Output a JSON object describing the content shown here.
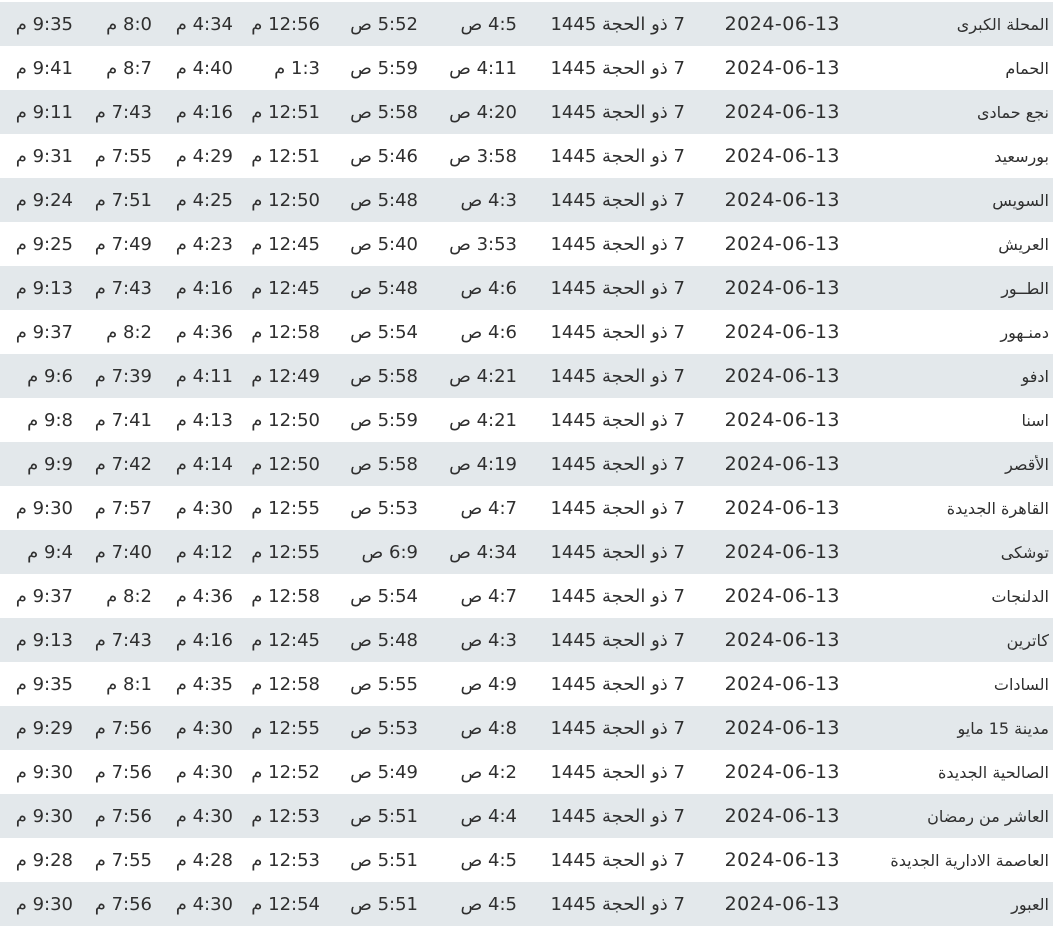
{
  "colors": {
    "row_alt": "#e3e8eb",
    "row": "#ffffff",
    "text": "#2f2f2f"
  },
  "rows": [
    [
      "المحلة الكبرى",
      "2024-06-13",
      "7 ذو الحجة 1445",
      "4:5 ص",
      "5:52 ص",
      "12:56 م",
      "4:34 م",
      "8:0 م",
      "9:35 م"
    ],
    [
      "الحمام",
      "2024-06-13",
      "7 ذو الحجة 1445",
      "4:11 ص",
      "5:59 ص",
      "1:3 م",
      "4:40 م",
      "8:7 م",
      "9:41 م"
    ],
    [
      "نجع حمادى",
      "2024-06-13",
      "7 ذو الحجة 1445",
      "4:20 ص",
      "5:58 ص",
      "12:51 م",
      "4:16 م",
      "7:43 م",
      "9:11 م"
    ],
    [
      "بورسعيد",
      "2024-06-13",
      "7 ذو الحجة 1445",
      "3:58 ص",
      "5:46 ص",
      "12:51 م",
      "4:29 م",
      "7:55 م",
      "9:31 م"
    ],
    [
      "السويس",
      "2024-06-13",
      "7 ذو الحجة 1445",
      "4:3 ص",
      "5:48 ص",
      "12:50 م",
      "4:25 م",
      "7:51 م",
      "9:24 م"
    ],
    [
      "العريش",
      "2024-06-13",
      "7 ذو الحجة 1445",
      "3:53 ص",
      "5:40 ص",
      "12:45 م",
      "4:23 م",
      "7:49 م",
      "9:25 م"
    ],
    [
      "الطــور",
      "2024-06-13",
      "7 ذو الحجة 1445",
      "4:6 ص",
      "5:48 ص",
      "12:45 م",
      "4:16 م",
      "7:43 م",
      "9:13 م"
    ],
    [
      "دمنـهور",
      "2024-06-13",
      "7 ذو الحجة 1445",
      "4:6 ص",
      "5:54 ص",
      "12:58 م",
      "4:36 م",
      "8:2 م",
      "9:37 م"
    ],
    [
      "ادفو",
      "2024-06-13",
      "7 ذو الحجة 1445",
      "4:21 ص",
      "5:58 ص",
      "12:49 م",
      "4:11 م",
      "7:39 م",
      "9:6 م"
    ],
    [
      "اسنا",
      "2024-06-13",
      "7 ذو الحجة 1445",
      "4:21 ص",
      "5:59 ص",
      "12:50 م",
      "4:13 م",
      "7:41 م",
      "9:8 م"
    ],
    [
      "الأقصر",
      "2024-06-13",
      "7 ذو الحجة 1445",
      "4:19 ص",
      "5:58 ص",
      "12:50 م",
      "4:14 م",
      "7:42 م",
      "9:9 م"
    ],
    [
      "القاهرة الجديدة",
      "2024-06-13",
      "7 ذو الحجة 1445",
      "4:7 ص",
      "5:53 ص",
      "12:55 م",
      "4:30 م",
      "7:57 م",
      "9:30 م"
    ],
    [
      "توشكى",
      "2024-06-13",
      "7 ذو الحجة 1445",
      "4:34 ص",
      "6:9 ص",
      "12:55 م",
      "4:12 م",
      "7:40 م",
      "9:4 م"
    ],
    [
      "الدلنجات",
      "2024-06-13",
      "7 ذو الحجة 1445",
      "4:7 ص",
      "5:54 ص",
      "12:58 م",
      "4:36 م",
      "8:2 م",
      "9:37 م"
    ],
    [
      "كاترين",
      "2024-06-13",
      "7 ذو الحجة 1445",
      "4:3 ص",
      "5:48 ص",
      "12:45 م",
      "4:16 م",
      "7:43 م",
      "9:13 م"
    ],
    [
      "السادات",
      "2024-06-13",
      "7 ذو الحجة 1445",
      "4:9 ص",
      "5:55 ص",
      "12:58 م",
      "4:35 م",
      "8:1 م",
      "9:35 م"
    ],
    [
      "مدينة 15 مايو",
      "2024-06-13",
      "7 ذو الحجة 1445",
      "4:8 ص",
      "5:53 ص",
      "12:55 م",
      "4:30 م",
      "7:56 م",
      "9:29 م"
    ],
    [
      "الصالحية الجديدة",
      "2024-06-13",
      "7 ذو الحجة 1445",
      "4:2 ص",
      "5:49 ص",
      "12:52 م",
      "4:30 م",
      "7:56 م",
      "9:30 م"
    ],
    [
      "العاشر من رمضان",
      "2024-06-13",
      "7 ذو الحجة 1445",
      "4:4 ص",
      "5:51 ص",
      "12:53 م",
      "4:30 م",
      "7:56 م",
      "9:30 م"
    ],
    [
      "العاصمة الادارية الجديدة",
      "2024-06-13",
      "7 ذو الحجة 1445",
      "4:5 ص",
      "5:51 ص",
      "12:53 م",
      "4:28 م",
      "7:55 م",
      "9:28 م"
    ],
    [
      "العبور",
      "2024-06-13",
      "7 ذو الحجة 1445",
      "4:5 ص",
      "5:51 ص",
      "12:54 م",
      "4:30 م",
      "7:56 م",
      "9:30 م"
    ]
  ]
}
